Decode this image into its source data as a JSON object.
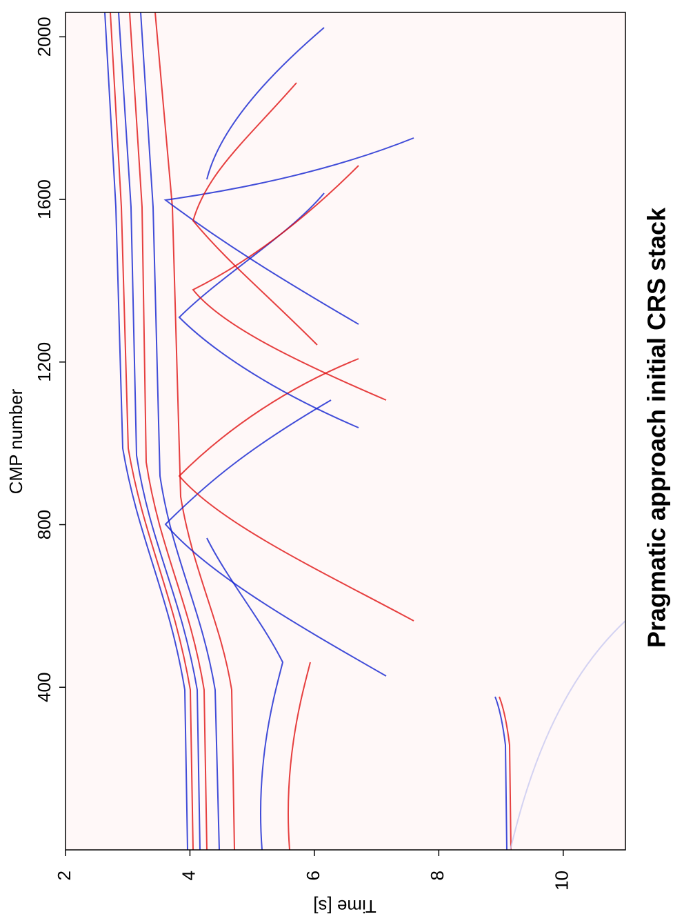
{
  "chart_data": {
    "type": "image",
    "title": "Pragmatic approach initial CRS stack",
    "xlabel": "CMP number",
    "xlim": [
      0,
      2060
    ],
    "xticks": [
      400,
      800,
      1200,
      1600,
      2000
    ],
    "ylabel": "Time [s]",
    "ylim": [
      2,
      11
    ],
    "yticks": [
      2,
      4,
      6,
      8,
      10
    ]
  }
}
